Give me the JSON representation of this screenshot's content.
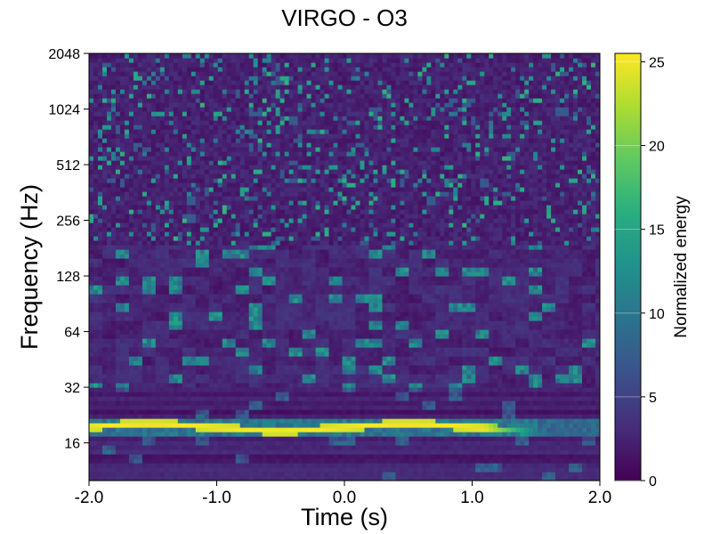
{
  "chart_data": {
    "type": "heatmap",
    "title": "VIRGO - O3",
    "xlabel": "Time (s)",
    "ylabel": "Frequency (Hz)",
    "xlim": [
      -2.0,
      2.0
    ],
    "ylim": [
      10,
      2048
    ],
    "yscale": "log2",
    "xticks": [
      -2.0,
      -1.0,
      0.0,
      1.0,
      2.0
    ],
    "xtick_labels": [
      "-2.0",
      "-1.0",
      "0.0",
      "1.0",
      "2.0"
    ],
    "yticks": [
      16,
      32,
      64,
      128,
      256,
      512,
      1024,
      2048
    ],
    "ytick_labels": [
      "16",
      "32",
      "64",
      "128",
      "256",
      "512",
      "1024",
      "2048"
    ],
    "colormap": "viridis",
    "colorbar": {
      "label": "Normalized energy",
      "range": [
        0,
        25.5
      ],
      "ticks": [
        0,
        5,
        10,
        15,
        20,
        25
      ],
      "tick_labels": [
        "0",
        "5",
        "10",
        "15",
        "20",
        "25"
      ]
    },
    "features": {
      "dominant_band": {
        "frequency_hz": 19.5,
        "time_range_s": [
          -2.0,
          1.5
        ],
        "peak_energy": 25.5
      },
      "background_energy": "mostly 0-5 with scattered blobs up to about 15"
    },
    "grid": false,
    "legend": "none"
  }
}
